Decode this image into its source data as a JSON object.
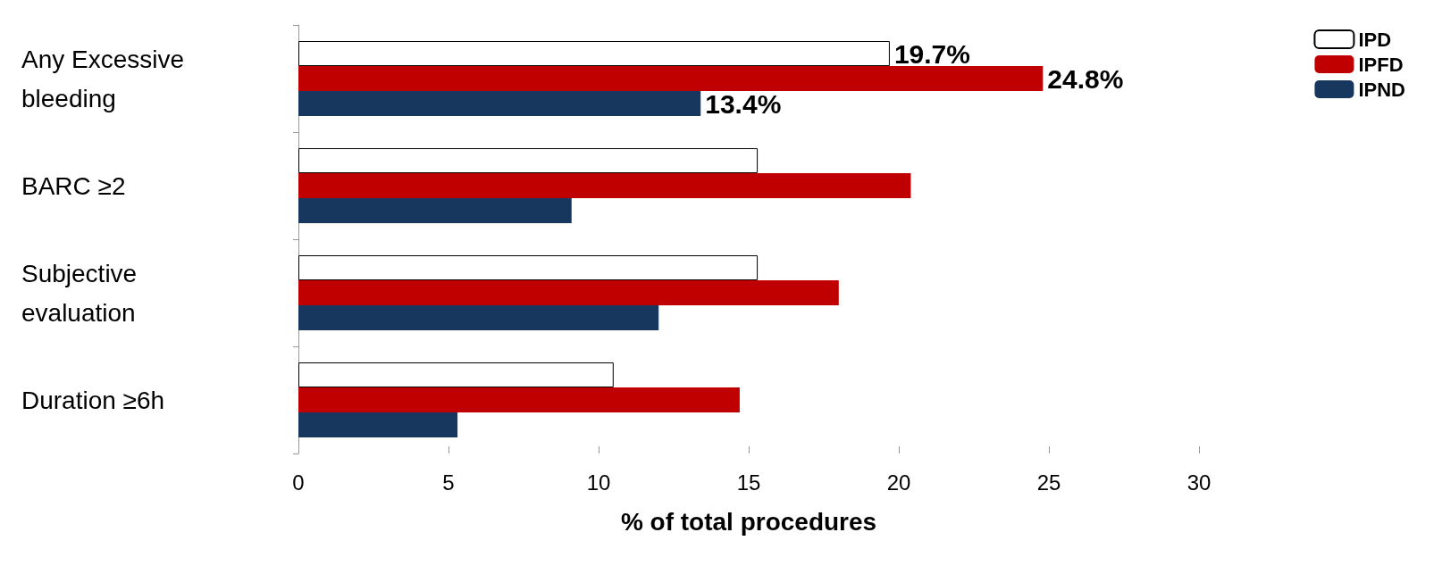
{
  "chart_data": {
    "type": "bar",
    "orientation": "horizontal",
    "xlabel": "% of total procedures",
    "categories": [
      "Any Excessive bleeding",
      "BARC ≥2",
      "Subjective evaluation",
      "Duration ≥6h"
    ],
    "series": [
      {
        "name": "IPD",
        "color": "#ffffff",
        "values": [
          19.7,
          15.3,
          15.3,
          10.5
        ],
        "value_labels": [
          "19.7%",
          null,
          null,
          null
        ]
      },
      {
        "name": "IPFD",
        "color": "#c00000",
        "values": [
          24.8,
          20.4,
          18.0,
          14.7
        ],
        "value_labels": [
          "24.8%",
          null,
          null,
          null
        ]
      },
      {
        "name": "IPND",
        "color": "#17375e",
        "values": [
          13.4,
          9.1,
          12.0,
          5.3
        ],
        "value_labels": [
          "13.4%",
          null,
          null,
          null
        ]
      }
    ],
    "xlim": [
      0,
      30
    ],
    "xticks": [
      0,
      5,
      10,
      15,
      20,
      25,
      30
    ],
    "grid": false,
    "legend": "top right"
  }
}
